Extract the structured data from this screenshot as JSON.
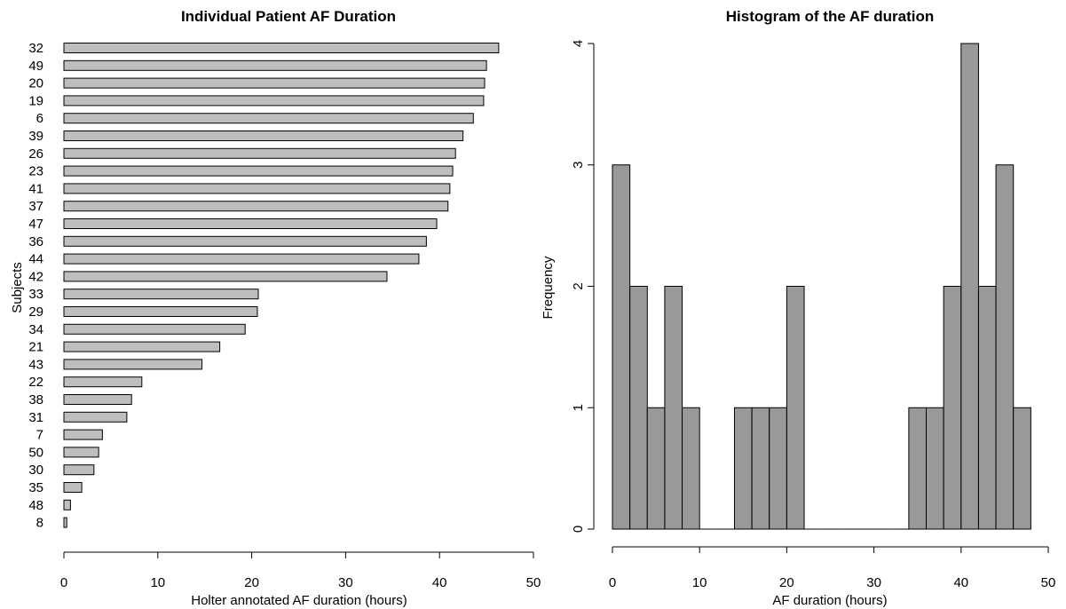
{
  "chart_data": [
    {
      "type": "bar",
      "orientation": "horizontal",
      "title": "Individual Patient AF Duration",
      "xlabel": "Holter annotated AF duration (hours)",
      "ylabel": "Subjects",
      "xlim": [
        0,
        50
      ],
      "x_ticks": [
        0,
        10,
        20,
        30,
        40,
        50
      ],
      "bar_color": "#bebebe",
      "categories": [
        "32",
        "49",
        "20",
        "19",
        "6",
        "39",
        "26",
        "23",
        "41",
        "37",
        "47",
        "36",
        "44",
        "42",
        "33",
        "29",
        "34",
        "21",
        "43",
        "22",
        "38",
        "31",
        "7",
        "50",
        "30",
        "35",
        "48",
        "8"
      ],
      "values": [
        46.3,
        45.0,
        44.8,
        44.7,
        43.6,
        42.5,
        41.7,
        41.4,
        41.1,
        40.9,
        39.7,
        38.6,
        37.8,
        34.4,
        20.7,
        20.6,
        19.3,
        16.6,
        14.7,
        8.3,
        7.2,
        6.7,
        4.1,
        3.7,
        3.2,
        1.9,
        0.7,
        0.3
      ],
      "grid": false
    },
    {
      "type": "bar",
      "title": "Histogram of the AF duration",
      "xlabel": "AF duration (hours)",
      "ylabel": "Frequency",
      "xlim": [
        0,
        50
      ],
      "ylim": [
        0,
        4
      ],
      "x_ticks": [
        0,
        10,
        20,
        30,
        40,
        50
      ],
      "y_ticks": [
        0,
        1,
        2,
        3,
        4
      ],
      "bar_color": "#999999",
      "bin_width": 2,
      "bins": [
        [
          0,
          2
        ],
        [
          2,
          4
        ],
        [
          4,
          6
        ],
        [
          6,
          8
        ],
        [
          8,
          10
        ],
        [
          10,
          12
        ],
        [
          12,
          14
        ],
        [
          14,
          16
        ],
        [
          16,
          18
        ],
        [
          18,
          20
        ],
        [
          20,
          22
        ],
        [
          22,
          24
        ],
        [
          24,
          26
        ],
        [
          26,
          28
        ],
        [
          28,
          30
        ],
        [
          30,
          32
        ],
        [
          32,
          34
        ],
        [
          34,
          36
        ],
        [
          36,
          38
        ],
        [
          38,
          40
        ],
        [
          40,
          42
        ],
        [
          42,
          44
        ],
        [
          44,
          46
        ],
        [
          46,
          48
        ]
      ],
      "counts": [
        3,
        2,
        1,
        2,
        1,
        0,
        0,
        1,
        1,
        1,
        2,
        0,
        0,
        0,
        0,
        0,
        0,
        1,
        1,
        2,
        4,
        2,
        3,
        1
      ],
      "grid": false
    }
  ]
}
